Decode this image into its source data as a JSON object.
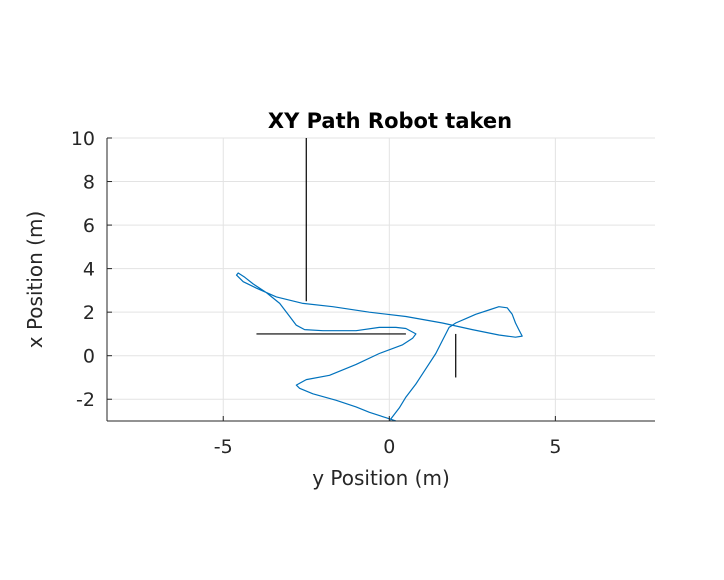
{
  "chart_data": {
    "type": "line",
    "title": "XY Path Robot taken",
    "xlabel": "y Position (m)",
    "ylabel": "x Position (m)",
    "xlim": [
      -8.5,
      8
    ],
    "ylim": [
      -3,
      10
    ],
    "xticks": [
      -5,
      0,
      5
    ],
    "xtick_labels": [
      "-5",
      "0",
      "5"
    ],
    "yticks": [
      -2,
      0,
      2,
      4,
      6,
      8,
      10
    ],
    "ytick_labels": [
      "-2",
      "0",
      "2",
      "4",
      "6",
      "8",
      "10"
    ],
    "grid": true,
    "series": [
      {
        "color": "#0072BD",
        "x": [
          0.0,
          0.1,
          0.3,
          0.5,
          0.8,
          1.1,
          1.4,
          1.6,
          1.7,
          1.8,
          2.0,
          2.3,
          2.6,
          3.0,
          3.3,
          3.55,
          3.7,
          3.8,
          3.9,
          4.0,
          3.8,
          3.3,
          2.5,
          1.6,
          0.5,
          -0.6,
          -1.7,
          -2.6,
          -3.4,
          -4.0,
          -4.4,
          -4.6,
          -4.55,
          -4.35,
          -4.1,
          -3.7,
          -3.3,
          -3.0,
          -2.8,
          -2.55,
          -2.0,
          -1.5,
          -1.0,
          -0.3,
          0.2,
          0.5,
          0.8,
          0.7,
          0.4,
          -0.3,
          -1.0,
          -1.8,
          -2.5,
          -2.8,
          -2.7,
          -2.3,
          -1.6,
          -1.0,
          -0.6,
          -0.1,
          0.2
        ],
        "y": [
          -3.0,
          -2.8,
          -2.4,
          -1.9,
          -1.3,
          -0.6,
          0.1,
          0.7,
          1.0,
          1.3,
          1.5,
          1.7,
          1.9,
          2.1,
          2.25,
          2.2,
          1.9,
          1.5,
          1.2,
          0.9,
          0.85,
          0.95,
          1.2,
          1.5,
          1.8,
          2.0,
          2.25,
          2.4,
          2.7,
          3.1,
          3.4,
          3.7,
          3.8,
          3.6,
          3.3,
          2.9,
          2.4,
          1.8,
          1.4,
          1.2,
          1.15,
          1.15,
          1.15,
          1.3,
          1.3,
          1.25,
          1.0,
          0.8,
          0.5,
          0.1,
          -0.4,
          -0.9,
          -1.1,
          -1.35,
          -1.5,
          -1.75,
          -2.05,
          -2.35,
          -2.6,
          -2.85,
          -3.0
        ]
      }
    ],
    "segments": [
      {
        "color": "#000000",
        "x": [
          -2.5,
          -2.5
        ],
        "y": [
          2.5,
          10.0
        ]
      },
      {
        "color": "#000000",
        "x": [
          -4.0,
          0.5
        ],
        "y": [
          1.0,
          1.0
        ]
      },
      {
        "color": "#000000",
        "x": [
          2.0,
          2.0
        ],
        "y": [
          -1.0,
          1.0
        ]
      }
    ]
  }
}
